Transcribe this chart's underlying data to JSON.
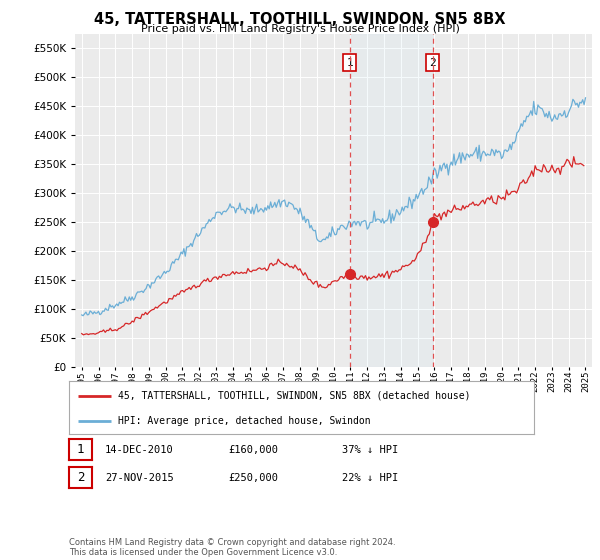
{
  "title": "45, TATTERSHALL, TOOTHILL, SWINDON, SN5 8BX",
  "subtitle": "Price paid vs. HM Land Registry's House Price Index (HPI)",
  "legend_line1": "45, TATTERSHALL, TOOTHILL, SWINDON, SN5 8BX (detached house)",
  "legend_line2": "HPI: Average price, detached house, Swindon",
  "table_rows": [
    {
      "num": "1",
      "date": "14-DEC-2010",
      "price": "£160,000",
      "pct": "37% ↓ HPI"
    },
    {
      "num": "2",
      "date": "27-NOV-2015",
      "price": "£250,000",
      "pct": "22% ↓ HPI"
    }
  ],
  "footnote": "Contains HM Land Registry data © Crown copyright and database right 2024.\nThis data is licensed under the Open Government Licence v3.0.",
  "sale1_date": 2010.96,
  "sale1_price": 160000,
  "sale2_date": 2015.9,
  "sale2_price": 250000,
  "vline1": 2010.96,
  "vline2": 2015.9,
  "ylim_max": 575000,
  "xlim_start": 1994.6,
  "xlim_end": 2025.4,
  "hpi_color": "#6baed6",
  "sale_color": "#d62728",
  "vline_color": "#e05050",
  "background_color": "#ffffff",
  "plot_bg_color": "#ebebeb",
  "hpi_anchors_x": [
    1995,
    1996,
    1997,
    1998,
    1999,
    2000,
    2001,
    2002,
    2003,
    2004,
    2005,
    2006,
    2007,
    2007.5,
    2008,
    2008.5,
    2009,
    2009.5,
    2010,
    2010.5,
    2011,
    2011.5,
    2012,
    2012.5,
    2013,
    2013.5,
    2014,
    2014.5,
    2015,
    2015.5,
    2016,
    2016.5,
    2017,
    2017.5,
    2018,
    2018.5,
    2019,
    2019.5,
    2020,
    2020.5,
    2021,
    2021.5,
    2022,
    2022.5,
    2023,
    2023.5,
    2024,
    2024.5,
    2025
  ],
  "hpi_anchors_y": [
    88000,
    95000,
    107000,
    120000,
    140000,
    163000,
    195000,
    230000,
    265000,
    275000,
    268000,
    275000,
    285000,
    280000,
    265000,
    248000,
    222000,
    218000,
    230000,
    242000,
    248000,
    250000,
    245000,
    248000,
    252000,
    260000,
    270000,
    280000,
    295000,
    310000,
    330000,
    345000,
    355000,
    360000,
    365000,
    368000,
    368000,
    370000,
    365000,
    375000,
    400000,
    430000,
    445000,
    440000,
    430000,
    435000,
    445000,
    455000,
    460000
  ],
  "sale_anchors_x": [
    1995,
    1996,
    1997,
    1997.5,
    1998,
    1999,
    2000,
    2001,
    2002,
    2003,
    2004,
    2005,
    2005.5,
    2006,
    2007,
    2007.5,
    2008,
    2009,
    2009.5,
    2010,
    2010.96,
    2011,
    2012,
    2013,
    2014,
    2015,
    2015.9,
    2016,
    2017,
    2018,
    2019,
    2020,
    2021,
    2022,
    2022.5,
    2023,
    2023.5,
    2024,
    2024.5
  ],
  "sale_anchors_y": [
    55000,
    58000,
    65000,
    70000,
    78000,
    95000,
    112000,
    128000,
    143000,
    155000,
    162000,
    165000,
    168000,
    172000,
    180000,
    175000,
    165000,
    142000,
    138000,
    148000,
    160000,
    158000,
    155000,
    158000,
    168000,
    188000,
    250000,
    258000,
    268000,
    278000,
    285000,
    290000,
    305000,
    340000,
    345000,
    340000,
    345000,
    350000,
    350000
  ]
}
